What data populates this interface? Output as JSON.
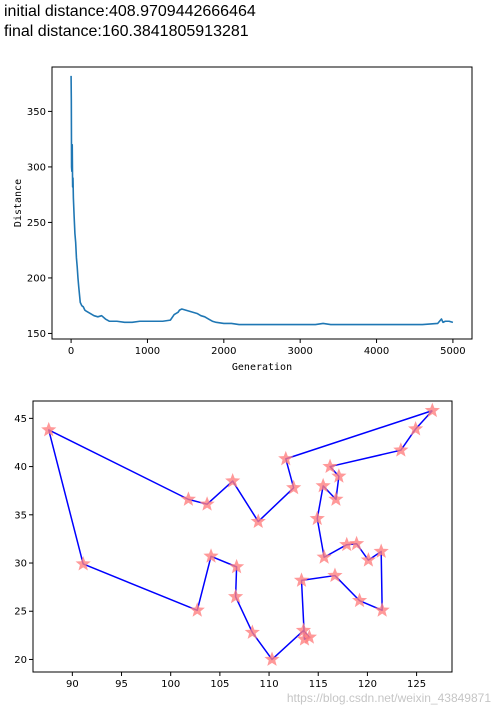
{
  "header": {
    "initial_label": "initial distance:",
    "initial_value": "408.9709442666464",
    "final_label": "final distance:",
    "final_value": "160.3841805913281"
  },
  "watermark": "https://blog.csdn.net/weixin_43849871",
  "colors": {
    "line": "#1f77b4",
    "route": "#0000ff",
    "star": "#ff7f7f"
  },
  "chart_data": [
    {
      "type": "line",
      "xlabel": "Generation",
      "ylabel": "Distance",
      "xlim": [
        -250,
        5250
      ],
      "ylim": [
        145,
        390
      ],
      "x_ticks": [
        0,
        1000,
        2000,
        3000,
        4000,
        5000
      ],
      "y_ticks": [
        150,
        200,
        250,
        300,
        350
      ],
      "grid": false,
      "series": [
        {
          "x": [
            0,
            3,
            6,
            10,
            15,
            20,
            25,
            30,
            40,
            50,
            60,
            70,
            80,
            90,
            100,
            120,
            140,
            160,
            180,
            200,
            250,
            300,
            350,
            400,
            450,
            500,
            600,
            700,
            800,
            900,
            1000,
            1100,
            1200,
            1300,
            1350,
            1400,
            1420,
            1450,
            1500,
            1550,
            1600,
            1650,
            1700,
            1750,
            1800,
            1850,
            1900,
            2000,
            2100,
            2200,
            2400,
            2600,
            2800,
            3000,
            3200,
            3300,
            3400,
            3600,
            3800,
            4000,
            4200,
            4400,
            4600,
            4800,
            4850,
            4870,
            4900,
            4950,
            5000
          ],
          "y": [
            382,
            360,
            300,
            296,
            320,
            282,
            290,
            272,
            255,
            240,
            232,
            218,
            210,
            200,
            192,
            178,
            175,
            174,
            171,
            170,
            168,
            166,
            165,
            166,
            163,
            161,
            161,
            160,
            160,
            161,
            161,
            161,
            161,
            162,
            167,
            169,
            171,
            172,
            171,
            170,
            169,
            168,
            166,
            165,
            163,
            161,
            160,
            159,
            159,
            158,
            158,
            158,
            158,
            158,
            158,
            159,
            158,
            158,
            158,
            158,
            158,
            158,
            158,
            159,
            163,
            160,
            161,
            161,
            160
          ]
        }
      ]
    },
    {
      "type": "scatter",
      "xlim": [
        86,
        128.6
      ],
      "ylim": [
        18.7,
        46.8
      ],
      "x_ticks": [
        90,
        95,
        100,
        105,
        110,
        115,
        120,
        125
      ],
      "y_ticks": [
        20,
        25,
        30,
        35,
        40,
        45
      ],
      "grid": false,
      "marker": "star",
      "series": [
        {
          "route": [
            [
              126.6,
              45.8
            ],
            [
              124.9,
              43.9
            ],
            [
              123.4,
              41.7
            ],
            [
              116.2,
              40.0
            ],
            [
              117.1,
              39.0
            ],
            [
              116.8,
              36.6
            ],
            [
              115.5,
              38.0
            ],
            [
              114.9,
              34.6
            ],
            [
              115.6,
              30.6
            ],
            [
              117.9,
              31.9
            ],
            [
              118.9,
              32.0
            ],
            [
              120.1,
              30.3
            ],
            [
              121.4,
              31.2
            ],
            [
              121.5,
              25.1
            ],
            [
              119.2,
              26.1
            ],
            [
              116.7,
              28.7
            ],
            [
              113.3,
              28.2
            ],
            [
              113.6,
              22.1
            ],
            [
              114.1,
              22.3
            ],
            [
              113.5,
              23.0
            ],
            [
              110.3,
              20.0
            ],
            [
              108.3,
              22.8
            ],
            [
              106.6,
              26.5
            ],
            [
              106.7,
              29.6
            ],
            [
              104.1,
              30.7
            ],
            [
              102.7,
              25.1
            ],
            [
              91.1,
              29.9
            ],
            [
              87.6,
              43.8
            ],
            [
              101.8,
              36.6
            ],
            [
              103.7,
              36.1
            ],
            [
              106.3,
              38.5
            ],
            [
              108.9,
              34.3
            ],
            [
              112.5,
              37.8
            ],
            [
              111.7,
              40.8
            ],
            [
              126.6,
              45.8
            ]
          ]
        }
      ]
    }
  ]
}
